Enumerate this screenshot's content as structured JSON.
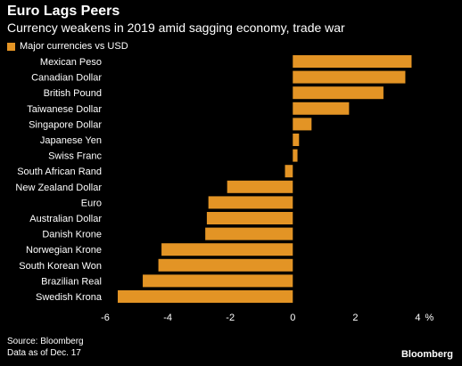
{
  "header": {
    "title": "Euro Lags Peers",
    "subtitle": "Currency weakens in 2019 amid sagging economy, trade war"
  },
  "colors": {
    "bar": "#e39425",
    "background": "#000000",
    "gridline": "#444444",
    "text": "#ffffff"
  },
  "footer": {
    "source": "Source: Bloomberg",
    "note": "Data as of Dec. 17",
    "brand": "Bloomberg"
  },
  "chart_data": {
    "type": "bar",
    "orientation": "horizontal",
    "title": "Euro Lags Peers",
    "subtitle": "Currency weakens in 2019 amid sagging economy, trade war",
    "xlabel": "",
    "ylabel": "",
    "unit": "%",
    "xlim": [
      -6,
      4.5
    ],
    "xticks": [
      "-6",
      "-4",
      "-2",
      "0",
      "2",
      "4"
    ],
    "legend": {
      "position": "top-left",
      "entries": [
        "Major currencies vs USD"
      ]
    },
    "grid": false,
    "categories": [
      "Mexican Peso",
      "Canadian Dollar",
      "British Pound",
      "Taiwanese Dollar",
      "Singapore Dollar",
      "Japanese Yen",
      "Swiss Franc",
      "South African Rand",
      "New Zealand Dollar",
      "Euro",
      "Australian Dollar",
      "Danish Krone",
      "Norwegian Krone",
      "South Korean Won",
      "Brazilian Real",
      "Swedish Krona"
    ],
    "series": [
      {
        "name": "Major currencies vs USD",
        "values": [
          3.8,
          3.6,
          2.9,
          1.8,
          0.6,
          0.2,
          0.15,
          -0.25,
          -2.1,
          -2.7,
          -2.75,
          -2.8,
          -4.2,
          -4.3,
          -4.8,
          -5.6
        ]
      }
    ]
  }
}
